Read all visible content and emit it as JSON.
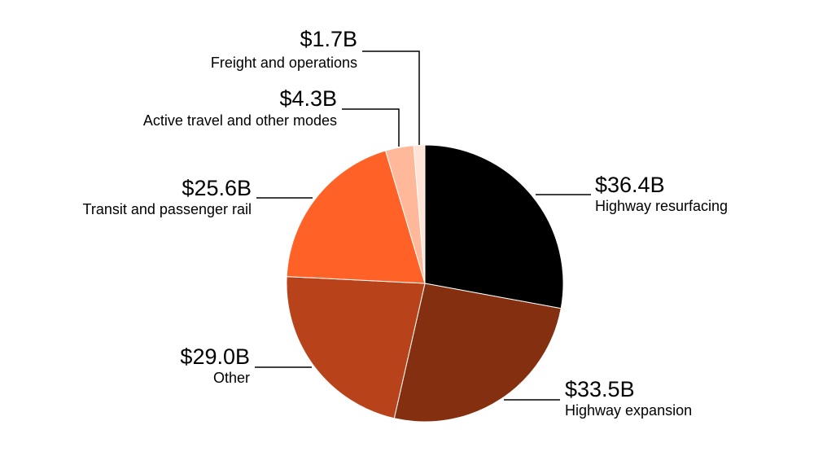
{
  "chart_data": {
    "type": "pie",
    "unit": "$B",
    "slices": [
      {
        "label": "Highway resurfacing",
        "value": 36.4,
        "value_label": "$36.4B",
        "color": "#000000"
      },
      {
        "label": "Highway expansion",
        "value": 33.5,
        "value_label": "$33.5B",
        "color": "#843010"
      },
      {
        "label": "Other",
        "value": 29.0,
        "value_label": "$29.0B",
        "color": "#b8431a"
      },
      {
        "label": "Transit and passenger rail",
        "value": 25.6,
        "value_label": "$25.6B",
        "color": "#ff6126"
      },
      {
        "label": "Active travel and other modes",
        "value": 4.3,
        "value_label": "$4.3B",
        "color": "#ffb899"
      },
      {
        "label": "Freight and operations",
        "value": 1.7,
        "value_label": "$1.7B",
        "color": "#ffe3d6"
      }
    ]
  }
}
